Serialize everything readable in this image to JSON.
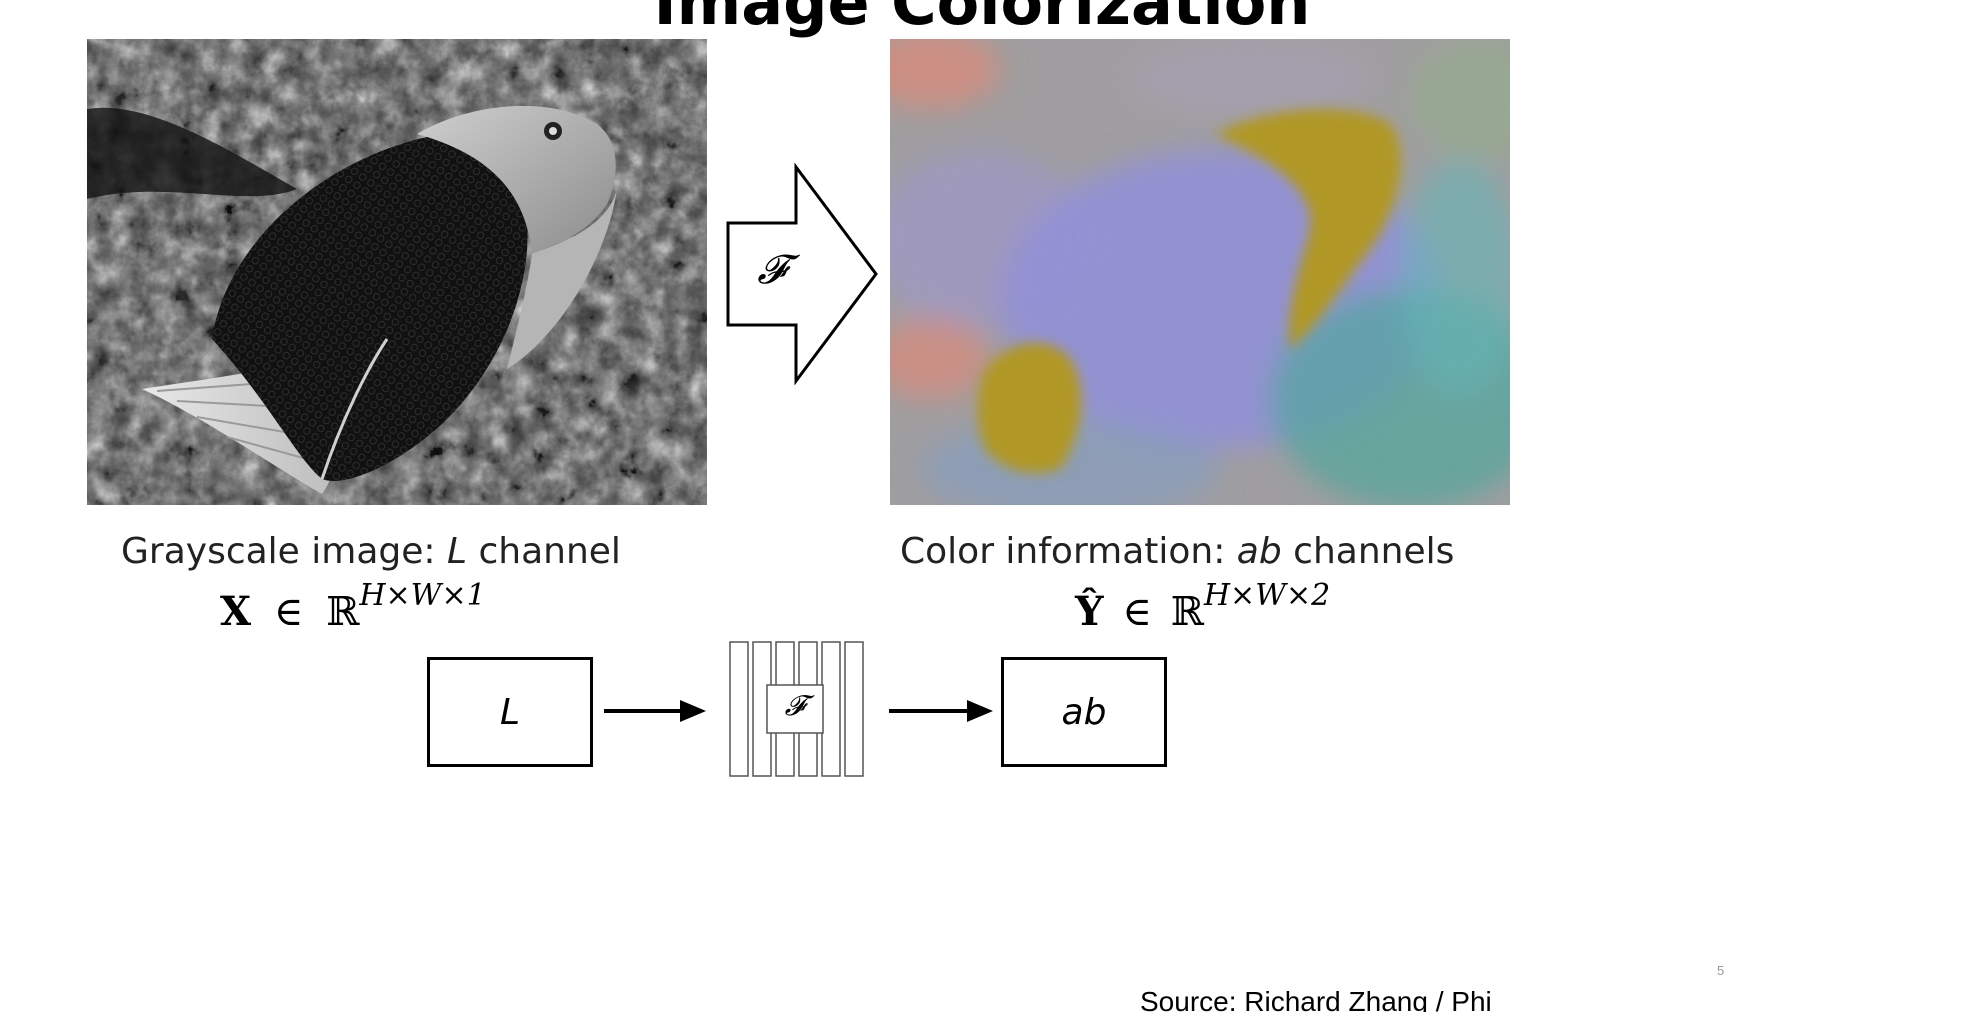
{
  "slide": {
    "title": "Image Colorization",
    "page_number": "5",
    "source": "Source: Richard Zhang / Phi"
  },
  "left": {
    "caption_prefix": "Grayscale image: ",
    "caption_channel": "L",
    "caption_suffix": " channel",
    "math_symbol": "X",
    "math_in": "∈",
    "math_set": "ℝ",
    "math_dims": "H×W×1"
  },
  "right": {
    "caption_prefix": "Color information: ",
    "caption_channel": "ab",
    "caption_suffix": " channels",
    "math_symbol": "Ŷ",
    "math_in": "∈",
    "math_set": "ℝ",
    "math_dims": "H×W×2"
  },
  "arrow": {
    "label": "𝓕"
  },
  "pipeline": {
    "input_label": "L",
    "network_label": "𝓕",
    "output_label": "ab"
  },
  "colors": {
    "yellow_fish": "#b0951c",
    "lavender": "#8f8ed8",
    "gray_bg": "#9e9c9e",
    "teal": "#4aa59a",
    "salmon": "#d88878"
  }
}
